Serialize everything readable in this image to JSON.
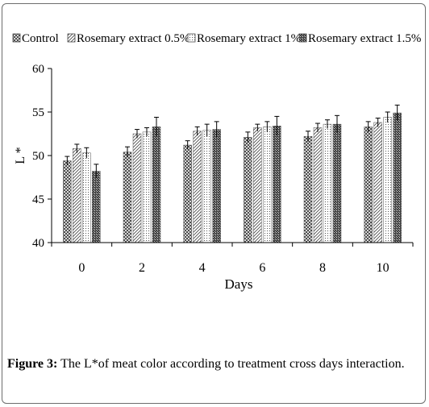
{
  "chart_data": {
    "type": "bar",
    "xlabel": "Days",
    "ylabel": "L *",
    "ylim": [
      40,
      60
    ],
    "yticks": [
      40,
      45,
      50,
      55,
      60
    ],
    "categories": [
      "0",
      "2",
      "4",
      "6",
      "8",
      "10"
    ],
    "legend_position": "top",
    "series": [
      {
        "name": "Control",
        "pattern": "cross-hatch",
        "values": [
          49.4,
          50.4,
          51.2,
          52.1,
          52.2,
          53.3
        ],
        "errors": [
          0.5,
          0.6,
          0.5,
          0.6,
          0.6,
          0.6
        ]
      },
      {
        "name": "Rosemary extract 0.5%",
        "pattern": "diagonal",
        "values": [
          50.8,
          52.5,
          52.8,
          53.2,
          53.2,
          53.8
        ],
        "errors": [
          0.5,
          0.5,
          0.5,
          0.4,
          0.5,
          0.5
        ]
      },
      {
        "name": "Rosemary extract 1%",
        "pattern": "dots",
        "values": [
          50.3,
          52.7,
          52.9,
          53.3,
          53.6,
          54.4
        ],
        "errors": [
          0.6,
          0.5,
          0.7,
          0.6,
          0.5,
          0.6
        ]
      },
      {
        "name": "Rosemary extract 1.5%",
        "pattern": "dense-check",
        "values": [
          48.2,
          53.3,
          53.0,
          53.4,
          53.6,
          54.9
        ],
        "errors": [
          0.8,
          1.1,
          0.9,
          1.1,
          1.0,
          0.9
        ]
      }
    ]
  },
  "caption": {
    "label": "Figure 3:",
    "text": " The L*of meat color according to treatment cross days interaction."
  }
}
